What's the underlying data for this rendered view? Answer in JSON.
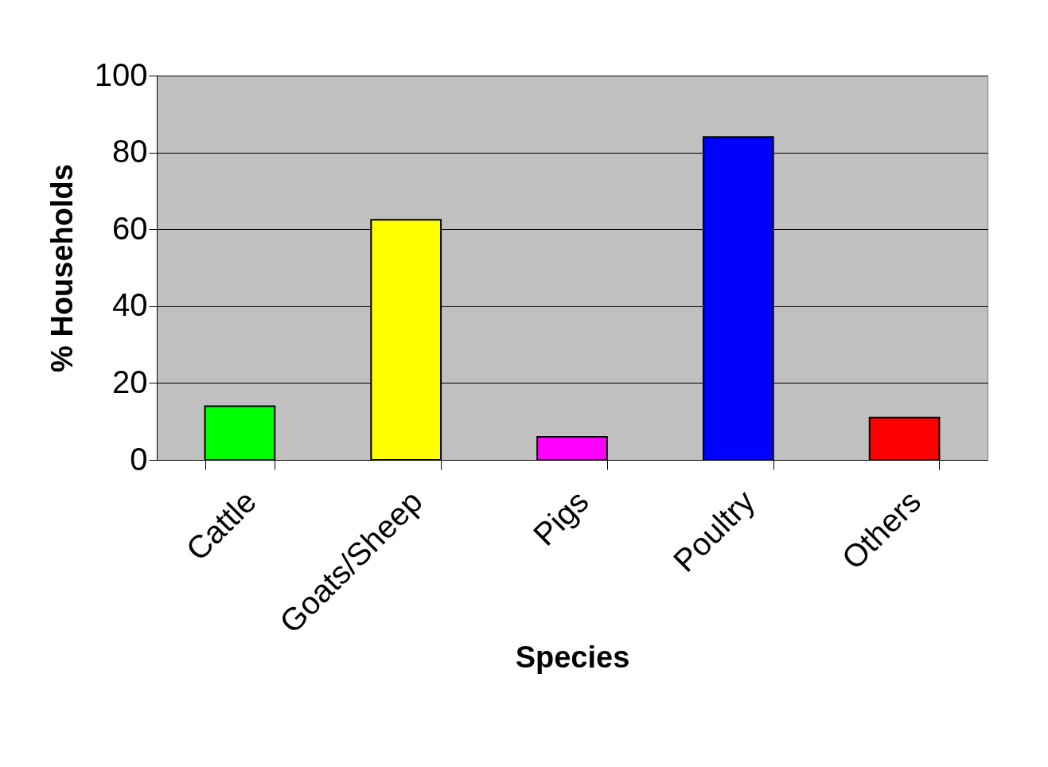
{
  "chart_data": {
    "type": "bar",
    "xlabel": "Species",
    "ylabel": "% Households",
    "categories": [
      "Cattle",
      "Goats/Sheep",
      "Pigs",
      "Poultry",
      "Others"
    ],
    "values": [
      14,
      62.5,
      6,
      84,
      11
    ],
    "colors": [
      "#00ff00",
      "#ffff00",
      "#ff00ff",
      "#0000ff",
      "#ff0000"
    ],
    "ylim": [
      0,
      100
    ],
    "yticks": [
      0,
      20,
      40,
      60,
      80,
      100
    ],
    "grid": "y"
  }
}
